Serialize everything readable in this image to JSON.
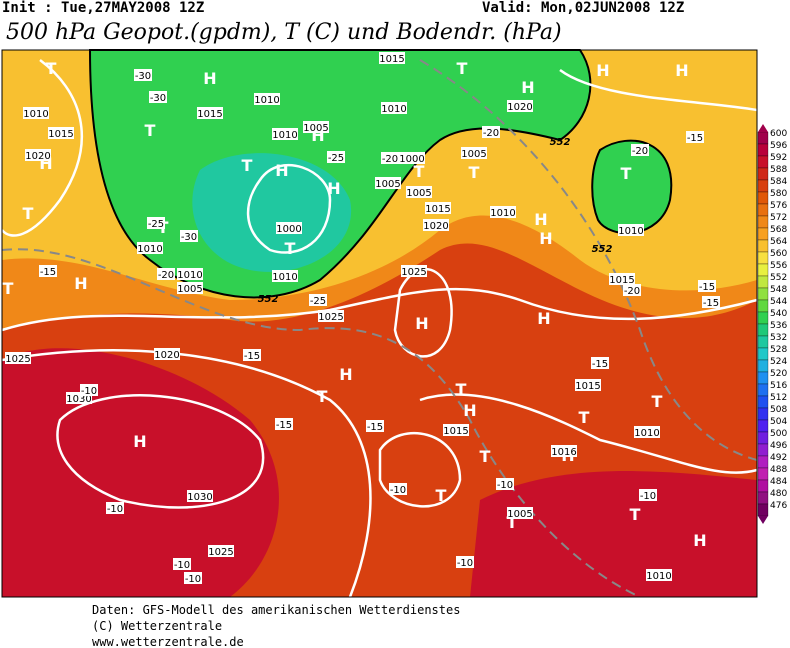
{
  "header": {
    "init": "Init : Tue,27MAY2008 12Z",
    "valid": "Valid: Mon,02JUN2008 12Z",
    "title": "500 hPa Geopot.(gpdm), T (C) und Bodendr. (hPa)"
  },
  "legend": {
    "values": [
      600,
      596,
      592,
      588,
      584,
      580,
      576,
      572,
      568,
      564,
      560,
      556,
      552,
      548,
      544,
      540,
      536,
      532,
      528,
      524,
      520,
      516,
      512,
      508,
      504,
      500,
      496,
      492,
      488,
      484,
      480,
      476
    ],
    "colors": [
      "#a0004a",
      "#b8003a",
      "#c8102a",
      "#d02818",
      "#d84010",
      "#e05808",
      "#e87010",
      "#f08818",
      "#f8a020",
      "#f8c030",
      "#f8e040",
      "#e8f040",
      "#c0e840",
      "#90e040",
      "#60d840",
      "#30d050",
      "#20c878",
      "#20c8a0",
      "#20c8c8",
      "#20b0e0",
      "#2090f0",
      "#2070f0",
      "#2050f0",
      "#3030f0",
      "#5020f0",
      "#7020e0",
      "#9020d0",
      "#b020c0",
      "#c020b0",
      "#b010a0",
      "#901080",
      "#700060"
    ]
  },
  "map": {
    "labels": [
      "H",
      "H",
      "H",
      "H",
      "T",
      "T",
      "T",
      "H",
      "H",
      "H",
      "T",
      "T",
      "H",
      "H",
      "T",
      "T",
      "H",
      "T",
      "H",
      "T",
      "H",
      "H",
      "T",
      "T",
      "T",
      "H",
      "T",
      "T",
      "T",
      "T",
      "H",
      "H",
      "T",
      "T",
      "H",
      "T",
      "H",
      "1010",
      "1015",
      "1020",
      "1015",
      "1010",
      "1005",
      "1010",
      "1010",
      "1005",
      "1015",
      "1020",
      "1010",
      "1025",
      "1000",
      "1010",
      "1010",
      "1005",
      "1010",
      "1025",
      "1020",
      "1025",
      "1030",
      "1030",
      "1025",
      "1015",
      "1016",
      "1010",
      "1015",
      "1010",
      "1005",
      "1015",
      "1010",
      "1020",
      "1015",
      "1005",
      "1000",
      "1005",
      "-30",
      "-30",
      "-25",
      "-30",
      "-20",
      "-25",
      "-20",
      "-25",
      "-20",
      "-20",
      "-15",
      "-15",
      "-15",
      "-15",
      "-15",
      "-10",
      "-10",
      "-10",
      "-10",
      "-10",
      "-10",
      "-10",
      "-15",
      "-20",
      "-15",
      "-15",
      "-10",
      "552",
      "552",
      "552"
    ]
  },
  "footer": {
    "lines": [
      "Daten: GFS-Modell des amerikanischen Wetterdienstes",
      "(C) Wetterzentrale",
      "www.wetterzentrale.de"
    ]
  }
}
